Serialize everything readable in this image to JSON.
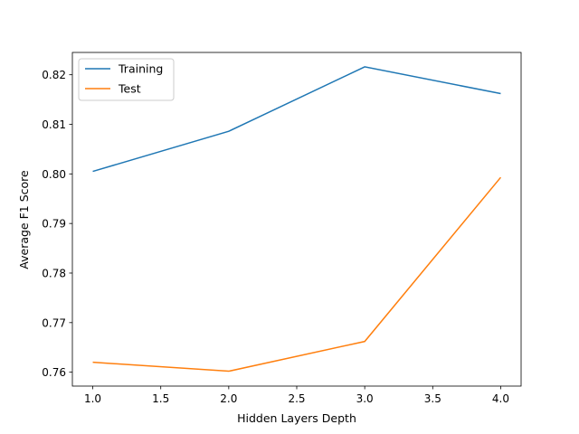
{
  "chart_data": {
    "type": "line",
    "title": "",
    "xlabel": "Hidden Layers Depth",
    "ylabel": "Average F1 Score",
    "x": [
      1.0,
      2.0,
      3.0,
      4.0
    ],
    "xlim": [
      0.85,
      4.15
    ],
    "ylim": [
      0.7572,
      0.8245
    ],
    "xticks": [
      "1.0",
      "1.5",
      "2.0",
      "2.5",
      "3.0",
      "3.5",
      "4.0"
    ],
    "yticks": [
      "0.76",
      "0.77",
      "0.78",
      "0.79",
      "0.80",
      "0.81",
      "0.82"
    ],
    "grid": false,
    "legend_position": "top-left",
    "series": [
      {
        "name": "Training",
        "color": "#1f77b4",
        "values": [
          0.8005,
          0.8086,
          0.8216,
          0.8162
        ]
      },
      {
        "name": "Test",
        "color": "#ff7f0e",
        "values": [
          0.762,
          0.7602,
          0.7662,
          0.7993
        ]
      }
    ]
  }
}
